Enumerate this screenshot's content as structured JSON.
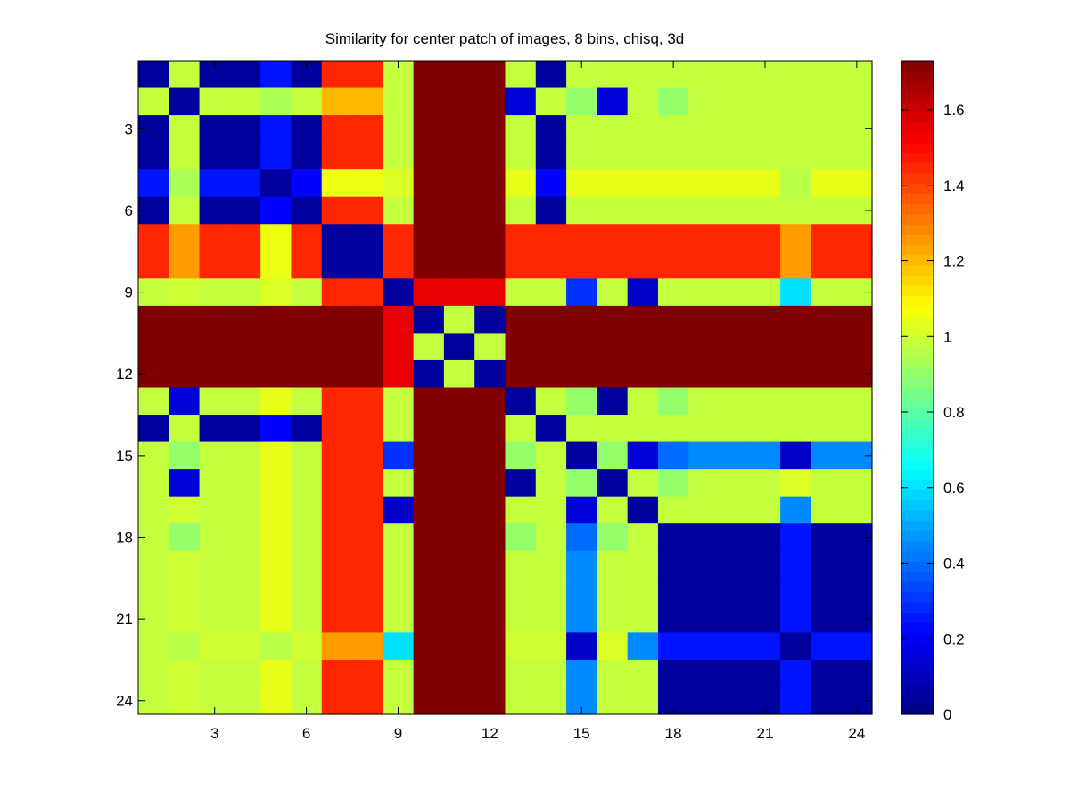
{
  "chart_data": {
    "type": "heatmap",
    "title": "Similarity for center patch of images, 8 bins, chisq, 3d",
    "x_ticks": [
      3,
      6,
      9,
      12,
      15,
      18,
      21,
      24
    ],
    "y_ticks": [
      3,
      6,
      9,
      12,
      15,
      18,
      21,
      24
    ],
    "x_range": [
      1,
      24
    ],
    "y_range": [
      1,
      24
    ],
    "colorbar": {
      "range": [
        0,
        1.73
      ],
      "ticks": [
        "0",
        "0.2",
        "0.4",
        "0.6",
        "0.8",
        "1",
        "1.2",
        "1.4",
        "1.6"
      ],
      "tick_values": [
        0,
        0.2,
        0.4,
        0.6,
        0.8,
        1.0,
        1.2,
        1.4,
        1.6
      ],
      "colormap": "jet"
    },
    "values": [
      [
        0.05,
        0.98,
        0.05,
        0.05,
        0.25,
        0.05,
        1.45,
        1.45,
        0.98,
        1.73,
        1.73,
        1.73,
        0.98,
        0.05,
        0.98,
        0.98,
        0.98,
        0.98,
        0.98,
        0.98,
        0.98,
        0.98,
        0.98,
        0.98
      ],
      [
        0.98,
        0.05,
        0.98,
        0.98,
        0.94,
        0.98,
        1.2,
        1.2,
        0.98,
        1.73,
        1.73,
        1.73,
        0.15,
        0.98,
        0.9,
        0.15,
        0.98,
        0.9,
        0.98,
        0.98,
        0.98,
        0.98,
        0.98,
        0.98
      ],
      [
        0.05,
        0.98,
        0.05,
        0.05,
        0.25,
        0.05,
        1.45,
        1.45,
        0.98,
        1.73,
        1.73,
        1.73,
        0.98,
        0.05,
        0.98,
        0.98,
        0.98,
        0.98,
        0.98,
        0.98,
        0.98,
        0.98,
        0.98,
        0.98
      ],
      [
        0.05,
        0.98,
        0.05,
        0.05,
        0.25,
        0.05,
        1.45,
        1.45,
        0.98,
        1.73,
        1.73,
        1.73,
        0.98,
        0.05,
        0.98,
        0.98,
        0.98,
        0.98,
        0.98,
        0.98,
        0.98,
        0.98,
        0.98,
        0.98
      ],
      [
        0.25,
        0.94,
        0.25,
        0.25,
        0.05,
        0.22,
        1.05,
        1.05,
        1.02,
        1.73,
        1.73,
        1.73,
        1.04,
        0.22,
        1.04,
        1.04,
        1.04,
        1.04,
        1.04,
        1.04,
        1.04,
        0.96,
        1.04,
        1.04
      ],
      [
        0.05,
        0.98,
        0.05,
        0.05,
        0.22,
        0.05,
        1.45,
        1.45,
        0.98,
        1.73,
        1.73,
        1.73,
        0.98,
        0.05,
        0.98,
        0.98,
        0.98,
        0.98,
        0.98,
        0.98,
        0.98,
        0.98,
        0.98,
        0.98
      ],
      [
        1.45,
        1.25,
        1.45,
        1.45,
        1.05,
        1.45,
        0.05,
        0.05,
        1.45,
        1.73,
        1.73,
        1.73,
        1.45,
        1.45,
        1.45,
        1.45,
        1.45,
        1.45,
        1.45,
        1.45,
        1.45,
        1.25,
        1.45,
        1.45
      ],
      [
        1.45,
        1.25,
        1.45,
        1.45,
        1.05,
        1.45,
        0.05,
        0.05,
        1.45,
        1.73,
        1.73,
        1.73,
        1.45,
        1.45,
        1.45,
        1.45,
        1.45,
        1.45,
        1.45,
        1.45,
        1.45,
        1.25,
        1.45,
        1.45
      ],
      [
        0.98,
        1.0,
        0.98,
        0.98,
        1.02,
        0.98,
        1.45,
        1.45,
        0.05,
        1.55,
        1.55,
        1.55,
        0.98,
        0.98,
        0.3,
        0.98,
        0.12,
        0.98,
        0.98,
        0.98,
        0.98,
        0.6,
        0.98,
        0.98
      ],
      [
        1.73,
        1.73,
        1.73,
        1.73,
        1.73,
        1.73,
        1.73,
        1.73,
        1.55,
        0.05,
        0.98,
        0.05,
        1.73,
        1.73,
        1.73,
        1.73,
        1.73,
        1.73,
        1.73,
        1.73,
        1.73,
        1.73,
        1.73,
        1.73
      ],
      [
        1.73,
        1.73,
        1.73,
        1.73,
        1.73,
        1.73,
        1.73,
        1.73,
        1.55,
        0.98,
        0.05,
        0.98,
        1.73,
        1.73,
        1.73,
        1.73,
        1.73,
        1.73,
        1.73,
        1.73,
        1.73,
        1.73,
        1.73,
        1.73
      ],
      [
        1.73,
        1.73,
        1.73,
        1.73,
        1.73,
        1.73,
        1.73,
        1.73,
        1.55,
        0.05,
        0.98,
        0.05,
        1.73,
        1.73,
        1.73,
        1.73,
        1.73,
        1.73,
        1.73,
        1.73,
        1.73,
        1.73,
        1.73,
        1.73
      ],
      [
        0.98,
        0.15,
        0.98,
        0.98,
        1.04,
        0.98,
        1.45,
        1.45,
        0.98,
        1.73,
        1.73,
        1.73,
        0.05,
        0.98,
        0.9,
        0.05,
        0.98,
        0.9,
        0.98,
        0.98,
        0.98,
        0.98,
        0.98,
        0.98
      ],
      [
        0.05,
        0.98,
        0.05,
        0.05,
        0.22,
        0.05,
        1.45,
        1.45,
        0.98,
        1.73,
        1.73,
        1.73,
        0.98,
        0.05,
        0.98,
        0.98,
        0.98,
        0.98,
        0.98,
        0.98,
        0.98,
        0.98,
        0.98,
        0.98
      ],
      [
        0.98,
        0.9,
        0.98,
        0.98,
        1.04,
        0.98,
        1.45,
        1.45,
        0.3,
        1.73,
        1.73,
        1.73,
        0.9,
        0.98,
        0.05,
        0.9,
        0.15,
        0.4,
        0.45,
        0.45,
        0.45,
        0.12,
        0.45,
        0.45
      ],
      [
        0.98,
        0.15,
        0.98,
        0.98,
        1.04,
        0.98,
        1.45,
        1.45,
        0.98,
        1.73,
        1.73,
        1.73,
        0.05,
        0.98,
        0.9,
        0.05,
        0.98,
        0.9,
        0.98,
        0.98,
        0.98,
        1.02,
        0.98,
        0.98
      ],
      [
        0.98,
        1.0,
        0.98,
        0.98,
        1.04,
        0.98,
        1.45,
        1.45,
        0.12,
        1.73,
        1.73,
        1.73,
        0.98,
        0.98,
        0.15,
        0.98,
        0.05,
        0.98,
        0.98,
        0.98,
        0.98,
        0.45,
        0.98,
        0.98
      ],
      [
        0.98,
        0.9,
        0.98,
        0.98,
        1.04,
        0.98,
        1.45,
        1.45,
        0.98,
        1.73,
        1.73,
        1.73,
        0.9,
        0.98,
        0.4,
        0.9,
        0.98,
        0.05,
        0.05,
        0.05,
        0.05,
        0.25,
        0.05,
        0.05
      ],
      [
        0.98,
        1.0,
        0.98,
        0.98,
        1.04,
        0.98,
        1.45,
        1.45,
        0.98,
        1.73,
        1.73,
        1.73,
        0.98,
        0.98,
        0.45,
        0.98,
        0.98,
        0.05,
        0.05,
        0.05,
        0.05,
        0.25,
        0.05,
        0.05
      ],
      [
        0.98,
        1.0,
        0.98,
        0.98,
        1.04,
        0.98,
        1.45,
        1.45,
        0.98,
        1.73,
        1.73,
        1.73,
        0.98,
        0.98,
        0.45,
        0.98,
        0.98,
        0.05,
        0.05,
        0.05,
        0.05,
        0.25,
        0.05,
        0.05
      ],
      [
        0.98,
        1.0,
        0.98,
        0.98,
        1.04,
        0.98,
        1.45,
        1.45,
        0.98,
        1.73,
        1.73,
        1.73,
        0.98,
        0.98,
        0.45,
        0.98,
        0.98,
        0.05,
        0.05,
        0.05,
        0.05,
        0.25,
        0.05,
        0.05
      ],
      [
        0.98,
        0.96,
        1.0,
        1.0,
        0.96,
        1.0,
        1.25,
        1.25,
        0.6,
        1.73,
        1.73,
        1.73,
        1.0,
        1.0,
        0.12,
        1.02,
        0.45,
        0.25,
        0.25,
        0.25,
        0.25,
        0.05,
        0.25,
        0.25
      ],
      [
        0.98,
        1.0,
        0.98,
        0.98,
        1.04,
        0.98,
        1.45,
        1.45,
        0.98,
        1.73,
        1.73,
        1.73,
        0.98,
        0.98,
        0.45,
        0.98,
        0.98,
        0.05,
        0.05,
        0.05,
        0.05,
        0.25,
        0.05,
        0.05
      ],
      [
        0.98,
        1.0,
        0.98,
        0.98,
        1.04,
        0.98,
        1.45,
        1.45,
        0.98,
        1.73,
        1.73,
        1.73,
        0.98,
        0.98,
        0.45,
        0.98,
        0.98,
        0.05,
        0.05,
        0.05,
        0.05,
        0.25,
        0.05,
        0.05
      ]
    ]
  }
}
